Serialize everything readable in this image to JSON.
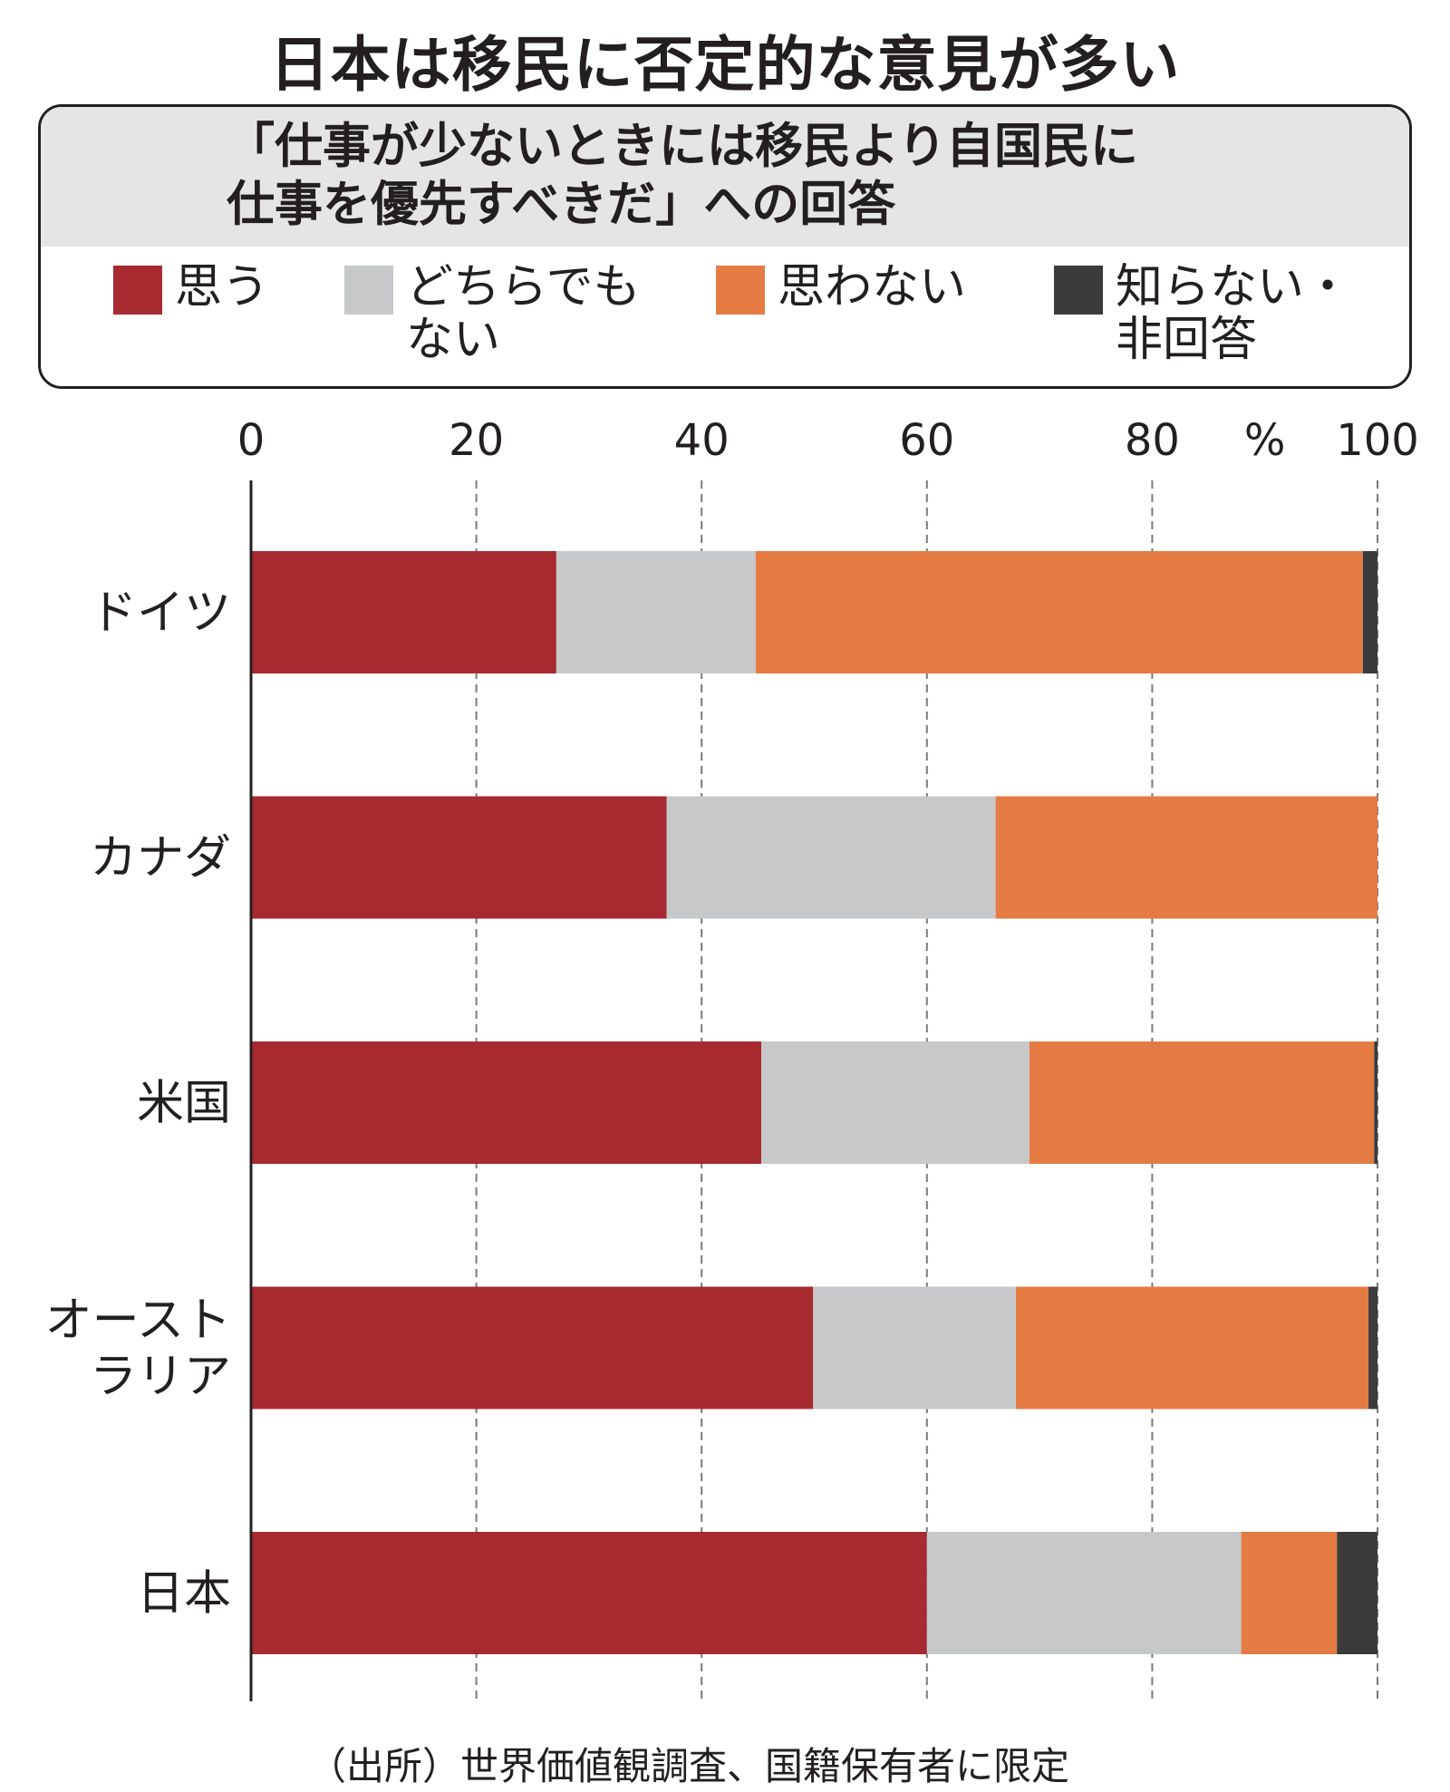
{
  "title": "日本は移民に否定的な意見が多い",
  "subtitle_lines": [
    "「仕事が少ないときには移民より自国民に",
    "仕事を優先すべきだ」への回答"
  ],
  "source": "（出所）世界価値観調査、国籍保有者に限定",
  "chart_data": {
    "type": "bar",
    "orientation": "horizontal",
    "stacked": true,
    "title": "日本は移民に否定的な意見が多い",
    "unit": "%",
    "xlim": [
      0,
      100
    ],
    "xticks": [
      "0",
      "20",
      "40",
      "60",
      "80",
      "100"
    ],
    "grid": true,
    "categories": [
      [
        "ドイツ"
      ],
      [
        "カナダ"
      ],
      [
        "米国"
      ],
      [
        "オースト",
        "ラリア"
      ],
      [
        "日本"
      ]
    ],
    "series": [
      {
        "name": [
          "思う"
        ],
        "color": "#a62a30",
        "values": [
          27.1,
          36.9,
          45.3,
          49.9,
          60.0
        ]
      },
      {
        "name": [
          "どちらでも",
          "ない"
        ],
        "color": "#c7c8c9",
        "values": [
          17.7,
          29.2,
          23.8,
          18.0,
          27.9
        ]
      },
      {
        "name": [
          "思わない"
        ],
        "color": "#e37b43",
        "values": [
          53.9,
          33.9,
          30.6,
          31.3,
          8.5
        ]
      },
      {
        "name": [
          "知らない・",
          "非回答"
        ],
        "color": "#3b3b3b",
        "values": [
          1.3,
          0.0,
          0.3,
          0.8,
          3.6
        ]
      }
    ]
  }
}
